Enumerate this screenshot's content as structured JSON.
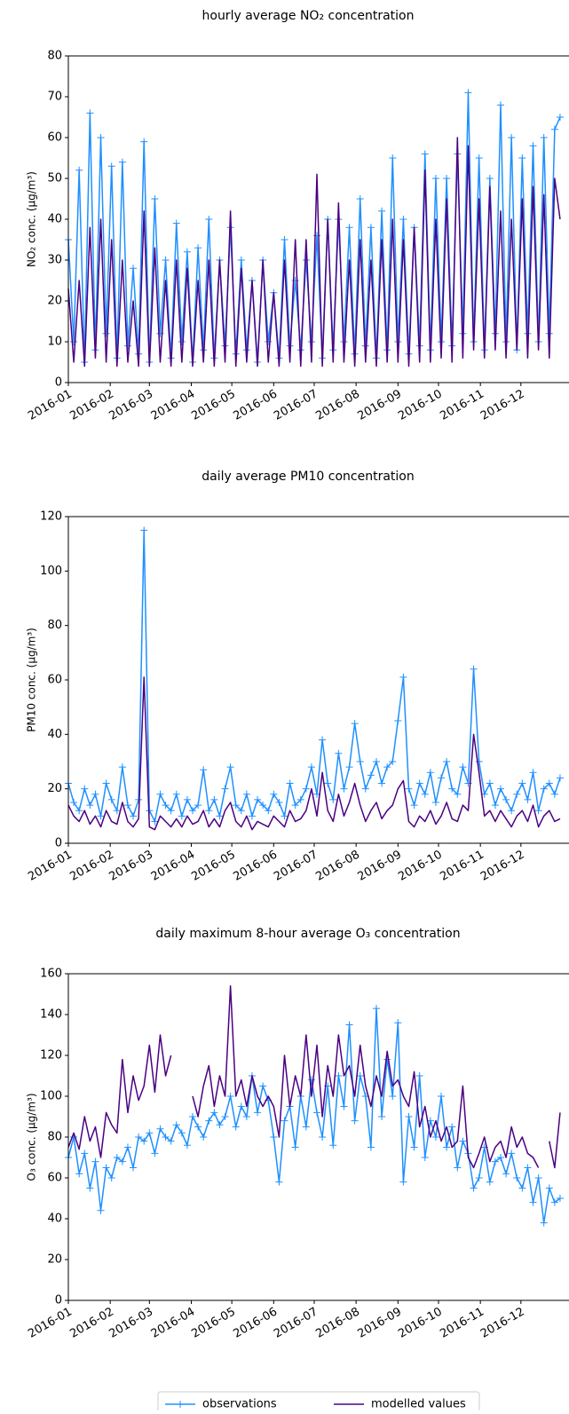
{
  "chart_data": [
    {
      "type": "line",
      "title": "hourly average NO₂ concentration",
      "y_label": "NO₂ conc. (µg/m³)",
      "x": [
        0,
        4,
        8,
        12,
        16,
        20,
        24,
        28,
        32,
        36,
        40,
        44,
        48,
        52,
        56,
        60,
        64,
        68,
        72,
        76,
        80,
        84,
        88,
        92,
        96,
        100,
        104,
        108,
        112,
        116,
        120,
        124,
        128,
        132,
        136,
        140,
        144,
        148,
        152,
        156,
        160,
        164,
        168,
        172,
        176,
        180,
        184,
        188,
        192,
        196,
        200,
        204,
        208,
        212,
        216,
        220,
        224,
        228,
        232,
        236,
        240,
        244,
        248,
        252,
        256,
        260,
        264,
        268,
        272,
        276,
        280,
        284,
        288,
        292,
        296,
        300,
        304,
        308,
        312,
        316,
        320,
        324,
        328,
        332,
        336,
        340,
        344,
        348,
        352,
        356,
        360,
        364
      ],
      "xlim": [
        0,
        366
      ],
      "xticks": [
        {
          "value": 0,
          "label": "2016-01"
        },
        {
          "value": 31,
          "label": "2016-02"
        },
        {
          "value": 60,
          "label": "2016-03"
        },
        {
          "value": 91,
          "label": "2016-04"
        },
        {
          "value": 121,
          "label": "2016-05"
        },
        {
          "value": 152,
          "label": "2016-06"
        },
        {
          "value": 182,
          "label": "2016-07"
        },
        {
          "value": 213,
          "label": "2016-08"
        },
        {
          "value": 244,
          "label": "2016-09"
        },
        {
          "value": 274,
          "label": "2016-10"
        },
        {
          "value": 305,
          "label": "2016-11"
        },
        {
          "value": 335,
          "label": "2016-12"
        }
      ],
      "ylim": [
        0,
        80
      ],
      "yticks": [
        0,
        10,
        20,
        30,
        40,
        50,
        60,
        70,
        80
      ],
      "series": [
        {
          "color": "#1e90ff",
          "marker": "+",
          "values": [
            35,
            10,
            52,
            5,
            66,
            8,
            60,
            12,
            53,
            6,
            54,
            9,
            28,
            7,
            59,
            5,
            45,
            12,
            30,
            6,
            39,
            10,
            32,
            5,
            33,
            8,
            40,
            6,
            30,
            9,
            38,
            7,
            30,
            8,
            25,
            5,
            30,
            10,
            22,
            6,
            35,
            9,
            25,
            8,
            30,
            10,
            36,
            6,
            40,
            8,
            40,
            10,
            38,
            7,
            45,
            9,
            38,
            6,
            42,
            8,
            55,
            10,
            40,
            7,
            38,
            9,
            56,
            8,
            50,
            10,
            50,
            9,
            56,
            12,
            71,
            10,
            55,
            8,
            50,
            12,
            68,
            10,
            60,
            8,
            55,
            12,
            58,
            10,
            60,
            12,
            62,
            65
          ]
        },
        {
          "color": "#4b0082",
          "values": [
            23,
            5,
            25,
            4,
            38,
            6,
            40,
            5,
            35,
            4,
            30,
            5,
            20,
            4,
            42,
            4,
            33,
            5,
            25,
            4,
            30,
            5,
            28,
            4,
            25,
            5,
            30,
            4,
            30,
            5,
            42,
            4,
            28,
            5,
            25,
            4,
            30,
            5,
            22,
            4,
            30,
            5,
            35,
            4,
            35,
            5,
            51,
            4,
            40,
            5,
            44,
            5,
            30,
            4,
            35,
            5,
            30,
            4,
            35,
            5,
            40,
            5,
            35,
            4,
            38,
            5,
            52,
            5,
            40,
            6,
            45,
            5,
            60,
            6,
            58,
            8,
            45,
            6,
            48,
            8,
            42,
            6,
            40,
            8,
            45,
            6,
            48,
            8,
            46,
            6,
            50,
            40
          ]
        }
      ]
    },
    {
      "type": "line",
      "title": "daily average PM10 concentration",
      "y_label": "PM10 conc. (µg/m³)",
      "x": [
        0,
        4,
        8,
        12,
        16,
        20,
        24,
        28,
        32,
        36,
        40,
        44,
        48,
        52,
        56,
        60,
        64,
        68,
        72,
        76,
        80,
        84,
        88,
        92,
        96,
        100,
        104,
        108,
        112,
        116,
        120,
        124,
        128,
        132,
        136,
        140,
        144,
        148,
        152,
        156,
        160,
        164,
        168,
        172,
        176,
        180,
        184,
        188,
        192,
        196,
        200,
        204,
        208,
        212,
        216,
        220,
        224,
        228,
        232,
        236,
        240,
        244,
        248,
        252,
        256,
        260,
        264,
        268,
        272,
        276,
        280,
        284,
        288,
        292,
        296,
        300,
        304,
        308,
        312,
        316,
        320,
        324,
        328,
        332,
        336,
        340,
        344,
        348,
        352,
        356,
        360,
        364
      ],
      "xlim": [
        0,
        366
      ],
      "xticks": [
        {
          "value": 0,
          "label": "2016-01"
        },
        {
          "value": 31,
          "label": "2016-02"
        },
        {
          "value": 60,
          "label": "2016-03"
        },
        {
          "value": 91,
          "label": "2016-04"
        },
        {
          "value": 121,
          "label": "2016-05"
        },
        {
          "value": 152,
          "label": "2016-06"
        },
        {
          "value": 182,
          "label": "2016-07"
        },
        {
          "value": 213,
          "label": "2016-08"
        },
        {
          "value": 244,
          "label": "2016-09"
        },
        {
          "value": 274,
          "label": "2016-10"
        },
        {
          "value": 305,
          "label": "2016-11"
        },
        {
          "value": 335,
          "label": "2016-12"
        }
      ],
      "ylim": [
        0,
        120
      ],
      "yticks": [
        0,
        20,
        40,
        60,
        80,
        100,
        120
      ],
      "series": [
        {
          "color": "#1e90ff",
          "marker": "+",
          "values": [
            22,
            15,
            12,
            20,
            14,
            18,
            10,
            22,
            16,
            12,
            28,
            14,
            10,
            16,
            115,
            12,
            8,
            18,
            14,
            12,
            18,
            10,
            16,
            12,
            14,
            27,
            12,
            16,
            10,
            20,
            28,
            14,
            12,
            18,
            10,
            16,
            14,
            12,
            18,
            15,
            10,
            22,
            14,
            16,
            20,
            28,
            18,
            38,
            22,
            16,
            33,
            20,
            28,
            44,
            30,
            20,
            25,
            30,
            22,
            28,
            30,
            45,
            61,
            20,
            14,
            22,
            18,
            26,
            15,
            24,
            30,
            20,
            18,
            28,
            22,
            64,
            30,
            18,
            22,
            14,
            20,
            16,
            12,
            18,
            22,
            16,
            26,
            12,
            20,
            22,
            18,
            24
          ]
        },
        {
          "color": "#4b0082",
          "values": [
            14,
            10,
            8,
            12,
            7,
            10,
            6,
            12,
            8,
            7,
            15,
            8,
            6,
            9,
            61,
            6,
            5,
            10,
            8,
            6,
            9,
            6,
            10,
            7,
            8,
            12,
            6,
            9,
            6,
            12,
            15,
            8,
            6,
            10,
            5,
            8,
            7,
            6,
            10,
            8,
            6,
            12,
            8,
            9,
            12,
            20,
            10,
            26,
            12,
            8,
            18,
            10,
            15,
            22,
            14,
            8,
            12,
            15,
            9,
            12,
            14,
            20,
            23,
            8,
            6,
            10,
            8,
            12,
            7,
            10,
            15,
            9,
            8,
            14,
            12,
            40,
            26,
            10,
            12,
            8,
            12,
            9,
            6,
            10,
            12,
            8,
            14,
            6,
            10,
            12,
            8,
            9
          ]
        }
      ]
    },
    {
      "type": "line",
      "title": "daily maximum 8-hour average O₃ concentration",
      "y_label": "O₃ conc. (µg/m³)",
      "x": [
        0,
        4,
        8,
        12,
        16,
        20,
        24,
        28,
        32,
        36,
        40,
        44,
        48,
        52,
        56,
        60,
        64,
        68,
        72,
        76,
        80,
        84,
        88,
        92,
        96,
        100,
        104,
        108,
        112,
        116,
        120,
        124,
        128,
        132,
        136,
        140,
        144,
        148,
        152,
        156,
        160,
        164,
        168,
        172,
        176,
        180,
        184,
        188,
        192,
        196,
        200,
        204,
        208,
        212,
        216,
        220,
        224,
        228,
        232,
        236,
        240,
        244,
        248,
        252,
        256,
        260,
        264,
        268,
        272,
        276,
        280,
        284,
        288,
        292,
        296,
        300,
        304,
        308,
        312,
        316,
        320,
        324,
        328,
        332,
        336,
        340,
        344,
        348,
        352,
        356,
        360,
        364
      ],
      "xlim": [
        0,
        366
      ],
      "xticks": [
        {
          "value": 0,
          "label": "2016-01"
        },
        {
          "value": 31,
          "label": "2016-02"
        },
        {
          "value": 60,
          "label": "2016-03"
        },
        {
          "value": 91,
          "label": "2016-04"
        },
        {
          "value": 121,
          "label": "2016-05"
        },
        {
          "value": 152,
          "label": "2016-06"
        },
        {
          "value": 182,
          "label": "2016-07"
        },
        {
          "value": 213,
          "label": "2016-08"
        },
        {
          "value": 244,
          "label": "2016-09"
        },
        {
          "value": 274,
          "label": "2016-10"
        },
        {
          "value": 305,
          "label": "2016-11"
        },
        {
          "value": 335,
          "label": "2016-12"
        }
      ],
      "ylim": [
        0,
        160
      ],
      "yticks": [
        0,
        20,
        40,
        60,
        80,
        100,
        120,
        140,
        160
      ],
      "series": [
        {
          "color": "#1e90ff",
          "marker": "+",
          "values": [
            70,
            80,
            62,
            72,
            55,
            68,
            44,
            65,
            60,
            70,
            68,
            75,
            65,
            80,
            78,
            82,
            72,
            84,
            80,
            78,
            86,
            82,
            76,
            90,
            85,
            80,
            88,
            92,
            86,
            90,
            100,
            85,
            95,
            90,
            110,
            92,
            105,
            98,
            80,
            58,
            88,
            95,
            75,
            100,
            85,
            108,
            92,
            80,
            105,
            76,
            110,
            95,
            135,
            88,
            110,
            100,
            75,
            143,
            90,
            118,
            100,
            136,
            58,
            90,
            75,
            110,
            70,
            88,
            80,
            100,
            75,
            85,
            65,
            78,
            72,
            55,
            60,
            75,
            58,
            68,
            70,
            62,
            72,
            60,
            55,
            65,
            48,
            60,
            38,
            55,
            48,
            50
          ]
        },
        {
          "color": "#4b0082",
          "values": [
            75,
            82,
            74,
            90,
            78,
            85,
            70,
            92,
            86,
            82,
            118,
            92,
            110,
            98,
            105,
            125,
            102,
            130,
            110,
            120,
            null,
            105,
            null,
            100,
            90,
            105,
            115,
            95,
            110,
            100,
            154,
            100,
            108,
            95,
            110,
            100,
            95,
            100,
            95,
            80,
            120,
            95,
            110,
            100,
            130,
            100,
            125,
            90,
            115,
            100,
            130,
            110,
            115,
            100,
            125,
            105,
            95,
            110,
            100,
            122,
            105,
            108,
            100,
            95,
            112,
            85,
            95,
            80,
            88,
            78,
            85,
            75,
            78,
            105,
            70,
            65,
            72,
            80,
            68,
            75,
            78,
            70,
            85,
            75,
            80,
            72,
            70,
            65,
            null,
            78,
            65,
            92
          ]
        }
      ]
    }
  ],
  "legend": {
    "position": "lower center",
    "entries": [
      {
        "name": "observations",
        "color": "#1e90ff",
        "marker": "+"
      },
      {
        "name": "modelled values",
        "color": "#4b0082"
      }
    ]
  }
}
